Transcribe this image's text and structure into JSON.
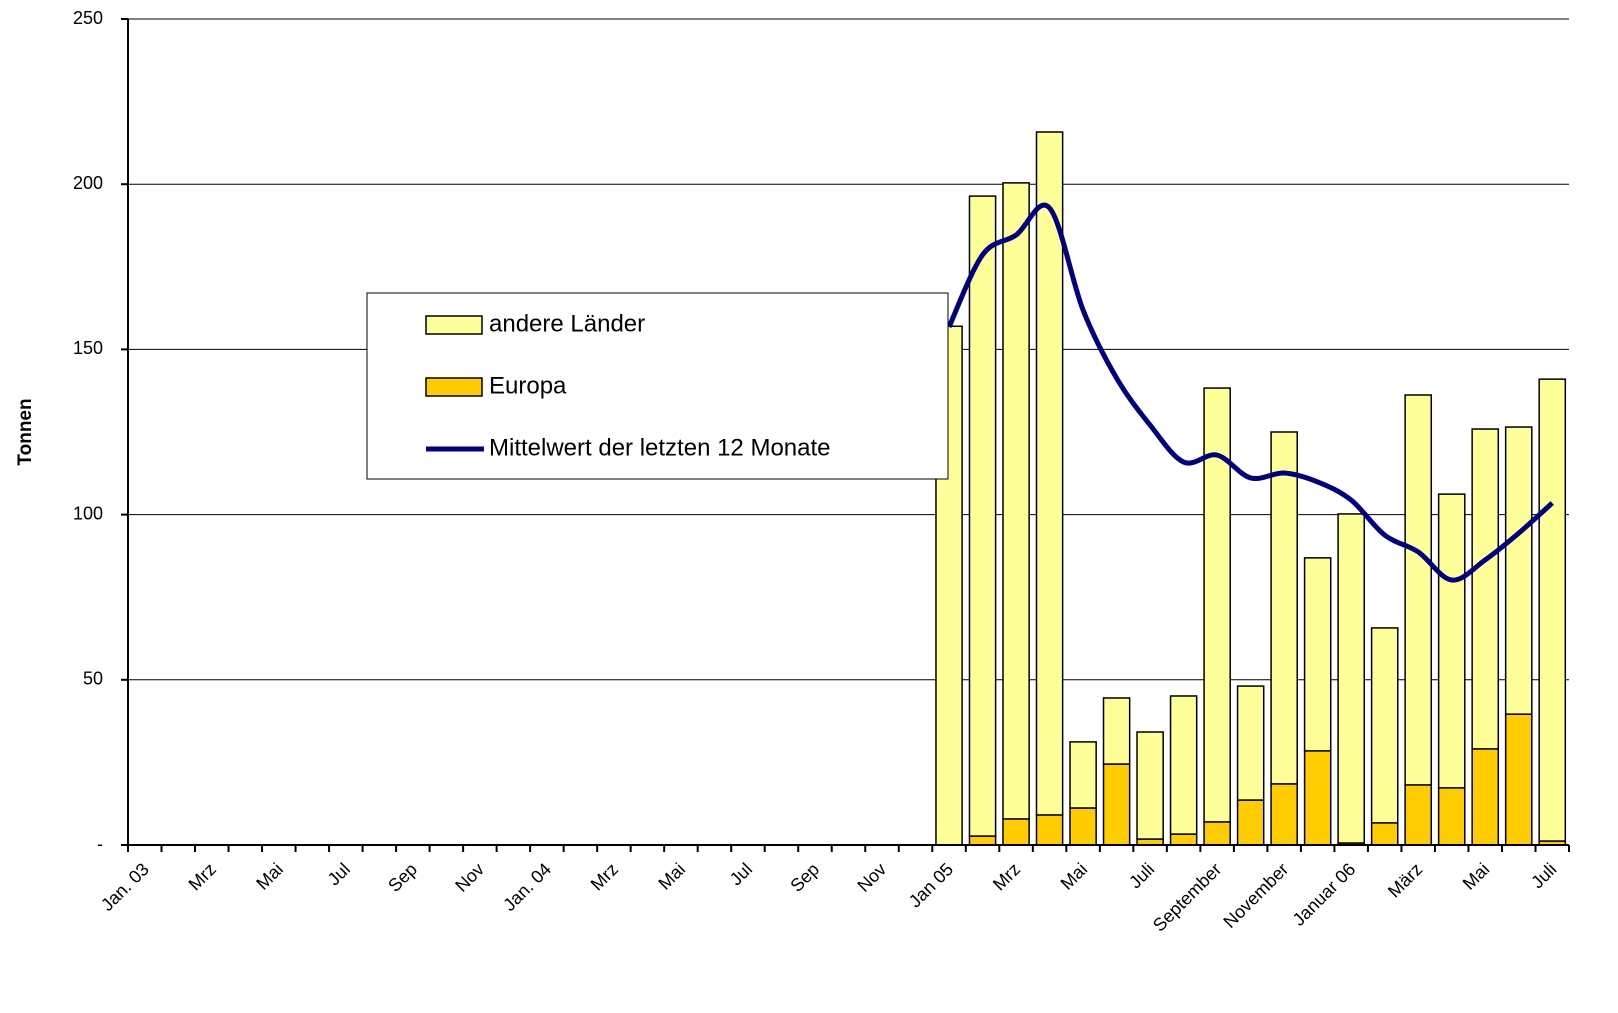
{
  "chart_data": {
    "type": "bar",
    "stacked": true,
    "y_label": "Tonnen",
    "categories": [
      "Jan. 03",
      null,
      "Mrz",
      null,
      "Mai",
      null,
      "Jul",
      null,
      "Sep",
      null,
      "Nov",
      null,
      "Jan. 04",
      null,
      "Mrz",
      null,
      "Mai",
      null,
      "Jul",
      null,
      "Sep",
      null,
      "Nov",
      null,
      "Jan 05",
      null,
      "Mrz",
      null,
      "Mai",
      null,
      "Juli",
      null,
      "September",
      null,
      "November",
      null,
      "Januar 06",
      null,
      "März",
      null,
      "Mai",
      null,
      "Juli"
    ],
    "series": [
      {
        "name": "andere Länder",
        "type": "bar",
        "color": "#ffff99",
        "values": [
          null,
          null,
          null,
          null,
          null,
          null,
          null,
          null,
          null,
          null,
          null,
          null,
          null,
          null,
          null,
          null,
          null,
          null,
          null,
          null,
          null,
          null,
          null,
          null,
          157,
          193.7,
          192.5,
          206.7,
          20,
          20,
          32.4,
          41.8,
          131.3,
          34.5,
          106.5,
          58.4,
          99.6,
          59,
          118,
          88.9,
          96.8,
          86.9,
          139.8
        ]
      },
      {
        "name": "Europa",
        "type": "bar",
        "color": "#ffcc00",
        "values": [
          null,
          null,
          null,
          null,
          null,
          null,
          null,
          null,
          null,
          null,
          null,
          null,
          null,
          null,
          null,
          null,
          null,
          null,
          null,
          null,
          null,
          null,
          null,
          null,
          0,
          2.7,
          7.9,
          9.1,
          11.2,
          24.5,
          1.8,
          3.3,
          7,
          13.6,
          18.5,
          28.5,
          0.6,
          6.7,
          18.2,
          17.3,
          29.1,
          39.6,
          1.2
        ]
      },
      {
        "name": "Mittelwert der letzten 12 Monate",
        "type": "line",
        "color": "#000080",
        "values": [
          null,
          null,
          null,
          null,
          null,
          null,
          null,
          null,
          null,
          null,
          null,
          null,
          null,
          null,
          null,
          null,
          null,
          null,
          null,
          null,
          null,
          null,
          null,
          null,
          156.8,
          178.6,
          184.6,
          192.8,
          161.9,
          141.3,
          127.1,
          115.9,
          118,
          111.1,
          112.6,
          109.9,
          104.4,
          93.8,
          88.7,
          80.2,
          86.3,
          94.4,
          103.5
        ]
      }
    ],
    "ylim": [
      0,
      250
    ],
    "yticks": [
      {
        "value": 0,
        "label": "-"
      },
      50,
      100,
      150,
      200,
      250
    ],
    "grid": true
  }
}
